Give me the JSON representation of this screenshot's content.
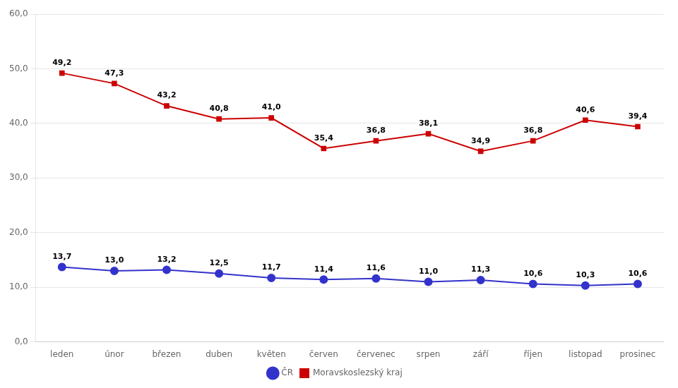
{
  "chart_data": {
    "type": "line",
    "categories": [
      "leden",
      "únor",
      "březen",
      "duben",
      "květen",
      "červen",
      "červenec",
      "srpen",
      "září",
      "říjen",
      "listopad",
      "prosinec"
    ],
    "series": [
      {
        "name": "ČR",
        "color": "#3333cc",
        "marker": "circle",
        "values": [
          13.7,
          13.0,
          13.2,
          12.5,
          11.7,
          11.4,
          11.6,
          11.0,
          11.3,
          10.6,
          10.3,
          10.6
        ],
        "value_labels": [
          "13,7",
          "13,0",
          "13,2",
          "12,5",
          "11,7",
          "11,4",
          "11,6",
          "11,0",
          "11,3",
          "10,6",
          "10,3",
          "10,6"
        ]
      },
      {
        "name": "Moravskoslezský kraj",
        "color": "#cc0000",
        "marker": "square",
        "values": [
          49.2,
          47.3,
          43.2,
          40.8,
          41.0,
          35.4,
          36.8,
          38.1,
          34.9,
          36.8,
          40.6,
          39.4
        ],
        "value_labels": [
          "49,2",
          "47,3",
          "43,2",
          "40,8",
          "41,0",
          "35,4",
          "36,8",
          "38,1",
          "34,9",
          "36,8",
          "40,6",
          "39,4"
        ]
      }
    ],
    "ylim": [
      0.0,
      60.0
    ],
    "yticks": [
      {
        "value": 0,
        "label": "0,0"
      },
      {
        "value": 10,
        "label": "10,0"
      },
      {
        "value": 20,
        "label": "20,0"
      },
      {
        "value": 30,
        "label": "30,0"
      },
      {
        "value": 40,
        "label": "40,0"
      },
      {
        "value": 50,
        "label": "50,0"
      },
      {
        "value": 60,
        "label": "60,0"
      }
    ],
    "grid": "y",
    "legend": "bottom",
    "data_labels": true
  }
}
